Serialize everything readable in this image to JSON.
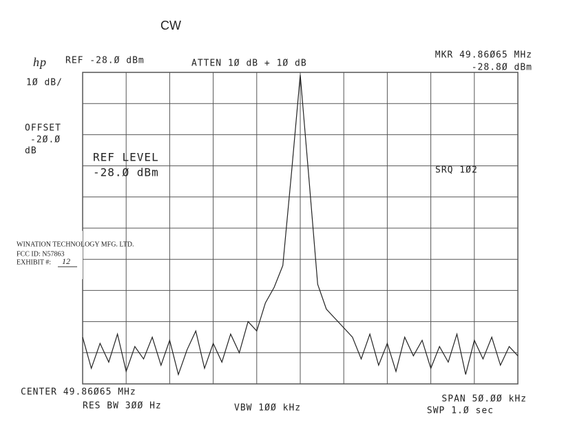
{
  "chart_data": {
    "type": "line",
    "title": "CW",
    "header": {
      "logo": "hp",
      "ref": "REF -28.Ø dBm",
      "atten": "ATTEN 1Ø dB + 1Ø dB",
      "marker_freq": "MKR 49.86Ø65 MHz",
      "marker_level": "-28.8Ø dBm",
      "scale": "1Ø dB/",
      "offset_label": "OFFSET",
      "offset_value": "-2Ø.Ø",
      "offset_unit": "dB"
    },
    "annotations": {
      "ref_level_title": "REF LEVEL",
      "ref_level_value": "-28.Ø dBm",
      "srq": "SRQ 1Ø2"
    },
    "footer": {
      "center": "CENTER 49.86Ø65 MHz",
      "res_bw": "RES BW 3ØØ Hz",
      "vbw": "VBW 1ØØ kHz",
      "span": "SPAN 5Ø.ØØ kHz",
      "sweep": "SWP 1.Ø  sec"
    },
    "label_box": {
      "company": "WINATION TECHNOLOGY MFG. LTD.",
      "fcc_id": "FCC ID:  N57863",
      "exhibit": "EXHIBIT #:",
      "exhibit_no": "12"
    },
    "x": [
      49.83565,
      49.83665,
      49.83765,
      49.83865,
      49.83965,
      49.84065,
      49.84165,
      49.84265,
      49.84365,
      49.84465,
      49.84565,
      49.84665,
      49.84765,
      49.84865,
      49.84965,
      49.85065,
      49.85165,
      49.85265,
      49.85365,
      49.85465,
      49.85565,
      49.85665,
      49.85765,
      49.85865,
      49.85965,
      49.86065,
      49.86165,
      49.86265,
      49.86365,
      49.86465,
      49.86565,
      49.86665,
      49.86765,
      49.86865,
      49.86965,
      49.87065,
      49.87165,
      49.87265,
      49.87365,
      49.87465,
      49.87565,
      49.87665,
      49.87765,
      49.87865,
      49.87965,
      49.88065,
      49.88165,
      49.88265,
      49.88365,
      49.88465,
      49.88565
    ],
    "series": [
      {
        "name": "CW",
        "color": "#222222",
        "values": [
          -113,
          -123,
          -115,
          -121,
          -112,
          -124,
          -116,
          -120,
          -113,
          -122,
          -114,
          -125,
          -117,
          -111,
          -123,
          -115,
          -121,
          -112,
          -118,
          -108,
          -111,
          -102,
          -97,
          -90,
          -60,
          -28.8,
          -62,
          -96,
          -104,
          -107,
          -110,
          -113,
          -120,
          -112,
          -122,
          -115,
          -124,
          -113,
          -119,
          -114,
          -123,
          -116,
          -121,
          -112,
          -125,
          -114,
          -120,
          -113,
          -122,
          -116,
          -119
        ]
      }
    ],
    "xlim": [
      49.83565,
      49.88565
    ],
    "xticks": [
      49.83565,
      49.84065,
      49.84565,
      49.85065,
      49.85565,
      49.86065,
      49.86565,
      49.87065,
      49.87565,
      49.88065,
      49.88565
    ],
    "ylim": [
      -128,
      -28
    ],
    "yticks": [
      -128,
      -118,
      -108,
      -98,
      -88,
      -78,
      -68,
      -58,
      -48,
      -38,
      -28
    ],
    "grid": true
  }
}
